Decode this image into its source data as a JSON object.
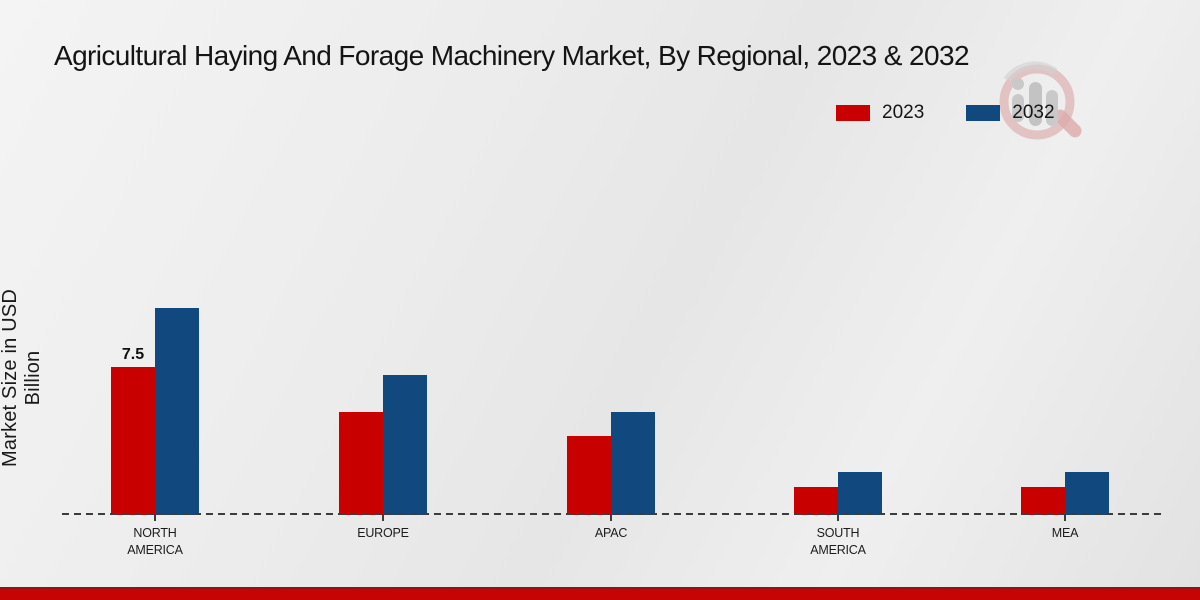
{
  "title": "Agricultural Haying And Forage Machinery Market, By Regional, 2023 & 2032",
  "y_axis_title": "Market Size in USD Billion",
  "legend": [
    {
      "label": "2023",
      "color": "#c80000"
    },
    {
      "label": "2032",
      "color": "#11497e"
    }
  ],
  "colors": {
    "series_2023": "#c80000",
    "series_2032": "#11497e",
    "background": "#ebebeb",
    "bottom_strip": "#c60404",
    "baseline": "#3c3c3c",
    "text": "#141414"
  },
  "watermark": {
    "name": "market-research-logo-watermark",
    "grey": "#c6c6c6",
    "red": "#ddadad"
  },
  "chart_data": {
    "type": "bar",
    "categories": [
      "NORTH AMERICA",
      "EUROPE",
      "APAC",
      "SOUTH AMERICA",
      "MEA"
    ],
    "series": [
      {
        "name": "2023",
        "color": "#c80000",
        "values": [
          7.5,
          5.2,
          4.0,
          1.4,
          1.4
        ]
      },
      {
        "name": "2032",
        "color": "#11497e",
        "values": [
          10.5,
          7.1,
          5.2,
          2.2,
          2.2
        ]
      }
    ],
    "bar_labels": [
      {
        "category_index": 0,
        "series_index": 0,
        "text": "7.5"
      }
    ],
    "title": "Agricultural Haying And Forage Machinery Market, By Regional, 2023 & 2032",
    "xlabel": "",
    "ylabel": "Market Size in USD Billion",
    "ylim": [
      0,
      23
    ],
    "grid": false,
    "legend_position": "top-right",
    "baseline_style": "dashed"
  }
}
